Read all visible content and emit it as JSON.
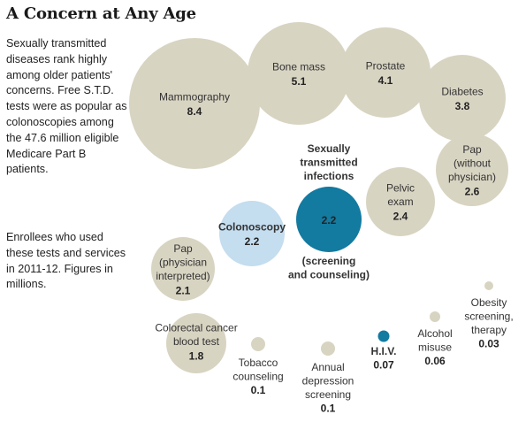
{
  "title": "A Concern at Any Age",
  "intro": "Sexually transmitted diseases rank highly among older patients' concerns. Free S.T.D. tests were as popular as colonoscopies among the 47.6 million eligible Medicare Part B patients.",
  "note": "Enrollees who used these tests and services in 2011-12. Figures in millions.",
  "colors": {
    "default": "#d8d4c2",
    "highlight_dark": "#137aa0",
    "highlight_light": "#c4ddef",
    "text": "#333333"
  },
  "chart_data": {
    "type": "bubble",
    "unit": "millions",
    "items": [
      {
        "label": "Mammography",
        "value": 8.4
      },
      {
        "label": "Bone mass",
        "value": 5.1
      },
      {
        "label": "Prostate",
        "value": 4.1
      },
      {
        "label": "Diabetes",
        "value": 3.8
      },
      {
        "label": "Pap (without physician)",
        "value": 2.6
      },
      {
        "label": "Pelvic exam",
        "value": 2.4
      },
      {
        "label": "Sexually transmitted infections (screening and counseling)",
        "value": 2.2
      },
      {
        "label": "Colonoscopy",
        "value": 2.2
      },
      {
        "label": "Pap (physician interpreted)",
        "value": 2.1
      },
      {
        "label": "Colorectal cancer blood test",
        "value": 1.8
      },
      {
        "label": "Tobacco counseling",
        "value": 0.1
      },
      {
        "label": "Annual depression screening",
        "value": 0.1
      },
      {
        "label": "H.I.V.",
        "value": 0.07
      },
      {
        "label": "Alcohol misuse",
        "value": 0.06
      },
      {
        "label": "Obesity screening, therapy",
        "value": 0.03
      }
    ],
    "bubbles": [
      {
        "id": "mammography",
        "lines": [
          "Mammography"
        ],
        "value_text": "8.4",
        "color": "default"
      },
      {
        "id": "bone-mass",
        "lines": [
          "Bone mass"
        ],
        "value_text": "5.1",
        "color": "default"
      },
      {
        "id": "prostate",
        "lines": [
          "Prostate"
        ],
        "value_text": "4.1",
        "color": "default"
      },
      {
        "id": "diabetes",
        "lines": [
          "Diabetes"
        ],
        "value_text": "3.8",
        "color": "default"
      },
      {
        "id": "pap-without-physician",
        "lines": [
          "Pap",
          "(without",
          "physician)"
        ],
        "value_text": "2.6",
        "color": "default"
      },
      {
        "id": "pelvic-exam",
        "lines": [
          "Pelvic",
          "exam"
        ],
        "value_text": "2.4",
        "color": "default"
      },
      {
        "id": "sti",
        "lines_above": [
          "Sexually",
          "transmitted",
          "infections"
        ],
        "lines_below": [
          "(screening",
          "and counseling)"
        ],
        "value_text": "2.2",
        "color": "highlight_dark"
      },
      {
        "id": "colonoscopy",
        "lines": [
          "Colonoscopy"
        ],
        "value_text": "2.2",
        "color": "highlight_light",
        "bold": true
      },
      {
        "id": "pap-physician-interpreted",
        "lines": [
          "Pap",
          "(physician",
          "interpreted)"
        ],
        "value_text": "2.1",
        "color": "default"
      },
      {
        "id": "colorectal-blood-test",
        "lines": [
          "Colorectal cancer",
          "blood test"
        ],
        "value_text": "1.8",
        "color": "default"
      },
      {
        "id": "tobacco",
        "lines": [
          "Tobacco",
          "counseling"
        ],
        "value_text": "0.1",
        "color": "default"
      },
      {
        "id": "depression",
        "lines": [
          "Annual",
          "depression",
          "screening"
        ],
        "value_text": "0.1",
        "color": "default"
      },
      {
        "id": "hiv",
        "lines": [
          "H.I.V."
        ],
        "value_text": "0.07",
        "color": "highlight_dark",
        "bold": true
      },
      {
        "id": "alcohol",
        "lines": [
          "Alcohol",
          "misuse"
        ],
        "value_text": "0.06",
        "color": "default"
      },
      {
        "id": "obesity",
        "lines": [
          "Obesity",
          "screening,",
          "therapy"
        ],
        "value_text": "0.03",
        "color": "default"
      }
    ]
  }
}
